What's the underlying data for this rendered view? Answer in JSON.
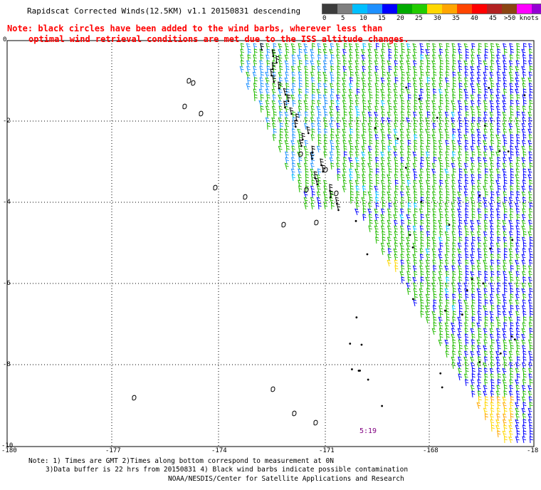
{
  "title": "Rapidscat Corrected Winds(12.5KM) v1.1 20150831 descending",
  "note_line1": "Note: black circles have been added to the wind barbs, wherever less than",
  "note_line2": "optimal wind retrieval conditions are met due to the ISS altitude changes.",
  "legend": {
    "unit_label": ">50 knots",
    "ticks": [
      "0",
      "5",
      "10",
      "15",
      "20",
      "25",
      "30",
      "35",
      "40",
      "45"
    ],
    "colors": [
      "#3c3c3c",
      "#7f7f7f",
      "#00bfff",
      "#1e90ff",
      "#0000ff",
      "#00aa00",
      "#22cc00",
      "#ffd700",
      "#ffa500",
      "#ff4500",
      "#ff0000",
      "#b22222",
      "#8b4513",
      "#ff00ff",
      "#9400d3",
      "#4b0082"
    ]
  },
  "axes": {
    "x_ticks": [
      "-180",
      "-177",
      "-174",
      "-171",
      "-168",
      "-18"
    ],
    "y_ticks": [
      "0",
      "-2",
      "-4",
      "-6",
      "-8",
      "-10"
    ]
  },
  "time_label": "5:19",
  "footer": {
    "line1": "Note: 1) Times are GMT 2)Times along bottom correspond to measurement at 0N",
    "line2": "3)Data buffer is 22 hrs from 20150831 4) Black wind barbs indicate possible contamination",
    "line3": "NOAA/NESDIS/Center for Satellite Applications and Research"
  }
}
